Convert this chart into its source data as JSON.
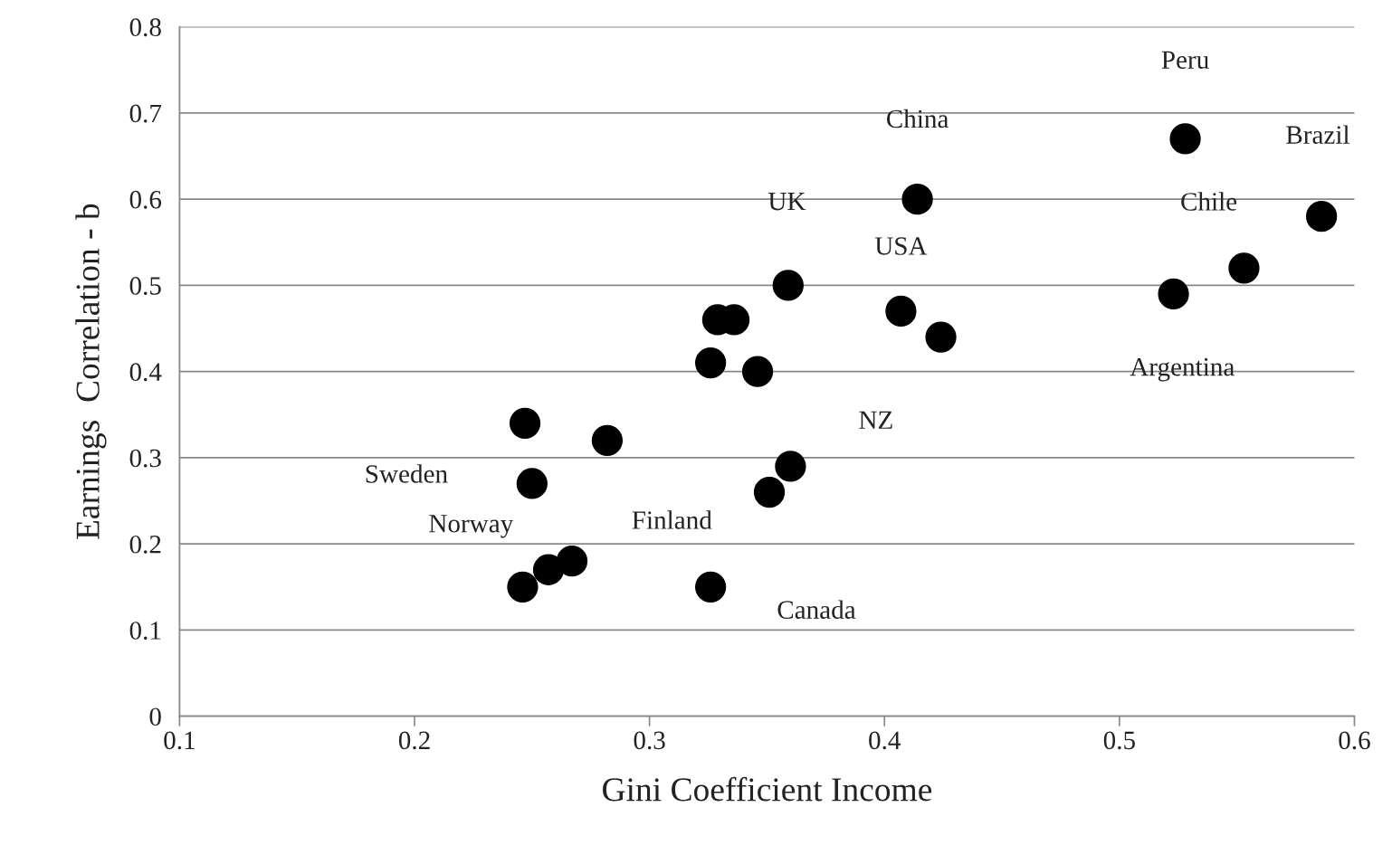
{
  "chart_data": {
    "type": "scatter",
    "xlabel": "Gini Coefficient Income",
    "ylabel": "Earnings  Correlation - b",
    "x": [
      0.528,
      0.414,
      0.586,
      0.553,
      0.523,
      0.359,
      0.407,
      0.424,
      0.329,
      0.336,
      0.326,
      0.346,
      0.247,
      0.282,
      0.25,
      0.36,
      0.351,
      0.267,
      0.257,
      0.246,
      0.326
    ],
    "values": [
      0.67,
      0.6,
      0.58,
      0.52,
      0.49,
      0.5,
      0.47,
      0.44,
      0.46,
      0.46,
      0.41,
      0.4,
      0.34,
      0.32,
      0.27,
      0.29,
      0.26,
      0.18,
      0.17,
      0.15,
      0.15
    ],
    "color": "#000000",
    "marker": "circle",
    "xlim": [
      0.1,
      0.6
    ],
    "xticks": [
      0.1,
      0.2,
      0.3,
      0.4,
      0.5,
      0.6
    ],
    "ylim": [
      0,
      0.8
    ],
    "yticks": [
      0,
      0.1,
      0.2,
      0.3,
      0.4,
      0.5,
      0.6,
      0.7,
      0.8
    ],
    "grid": "y",
    "legend": false,
    "annotations": [
      {
        "text": "Peru",
        "x": 0.528,
        "y": 0.67
      },
      {
        "text": "China",
        "x": 0.414,
        "y": 0.6
      },
      {
        "text": "Brazil",
        "x": 0.586,
        "y": 0.58
      },
      {
        "text": "Chile",
        "x": 0.553,
        "y": 0.52
      },
      {
        "text": "Argentina",
        "x": 0.523,
        "y": 0.49
      },
      {
        "text": "UK",
        "x": 0.359,
        "y": 0.5
      },
      {
        "text": "USA",
        "x": 0.407,
        "y": 0.47
      },
      {
        "text": "NZ",
        "x": 0.36,
        "y": 0.29
      },
      "Sweden",
      "Norway",
      "Finland",
      "Canada"
    ]
  }
}
